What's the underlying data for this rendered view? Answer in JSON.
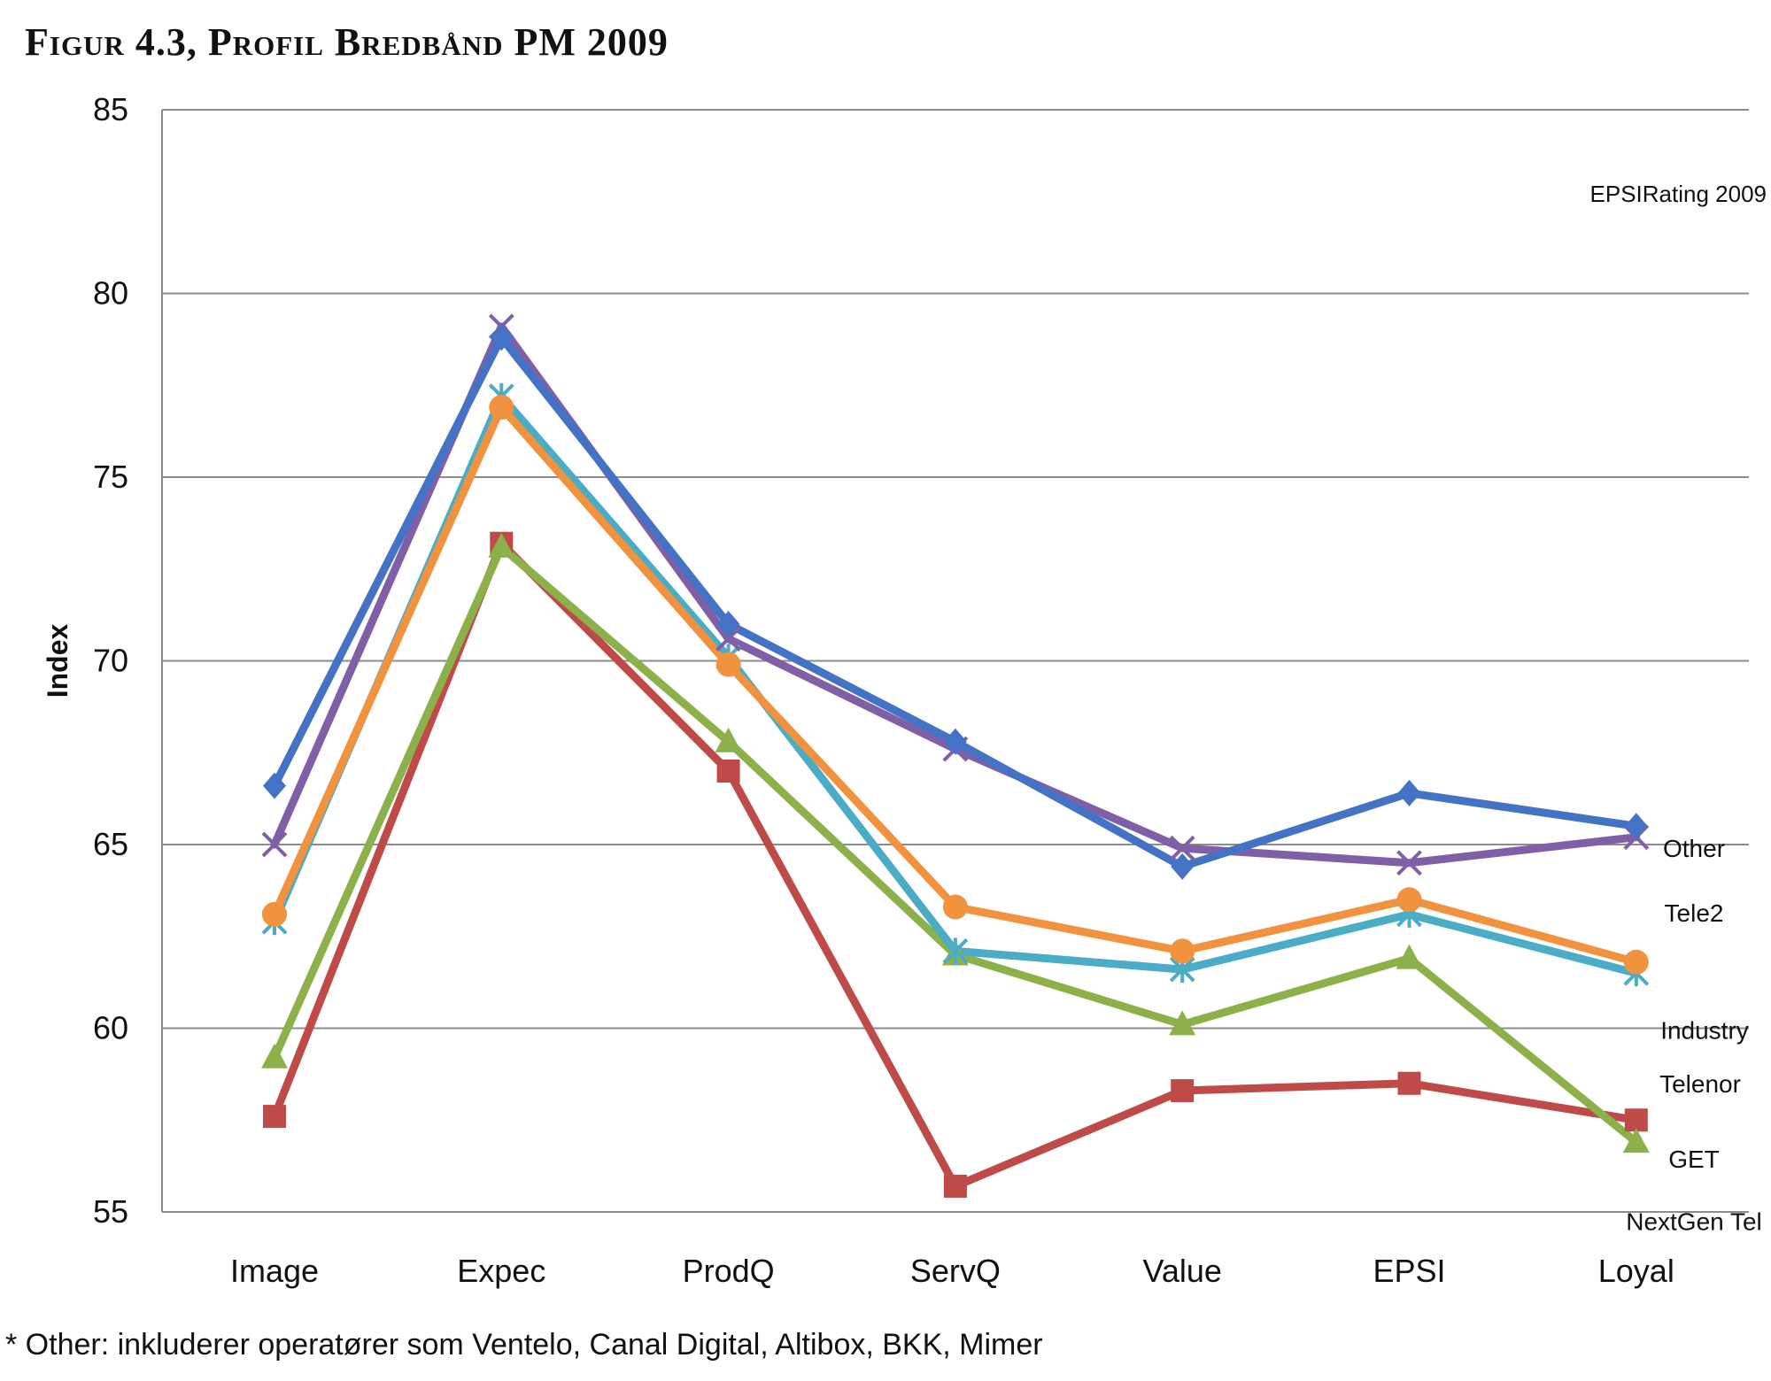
{
  "title": "Figur 4.3, Profil Bredbånd PM 2009",
  "footnote": "* Other: inkluderer operatører som Ventelo, Canal Digital, Altibox, BKK, Mimer",
  "chart_data": {
    "type": "line",
    "title": "Figur 4.3, Profil Bredbånd PM 2009",
    "xlabel": "",
    "ylabel": "Index",
    "categories": [
      "Image",
      "Expec",
      "ProdQ",
      "ServQ",
      "Value",
      "EPSI",
      "Loyal"
    ],
    "ylim": [
      55,
      85
    ],
    "yticks": [
      55,
      60,
      65,
      70,
      75,
      80,
      85
    ],
    "grid": true,
    "annotation": "EPSIRating 2009",
    "series": [
      {
        "name": "Other",
        "color": "#4472c4",
        "marker": "diamond",
        "values": [
          66.6,
          78.8,
          71.0,
          67.8,
          64.4,
          66.4,
          65.5
        ]
      },
      {
        "name": "Tele2",
        "color": "#7f5fa5",
        "marker": "x",
        "values": [
          65.0,
          79.1,
          70.6,
          67.6,
          64.9,
          64.5,
          65.2
        ]
      },
      {
        "name": "Industry",
        "color": "#f0923e",
        "marker": "circle",
        "values": [
          63.1,
          76.9,
          69.9,
          63.3,
          62.1,
          63.5,
          61.8
        ]
      },
      {
        "name": "Telenor",
        "color": "#4bacc6",
        "marker": "star",
        "values": [
          62.9,
          77.2,
          70.1,
          62.1,
          61.6,
          63.1,
          61.5
        ]
      },
      {
        "name": "NextGen Tel",
        "color": "#8cb04a",
        "marker": "triangle",
        "values": [
          59.2,
          73.1,
          67.8,
          62.0,
          60.1,
          61.9,
          56.9
        ]
      },
      {
        "name": "GET",
        "color": "#be4b48",
        "marker": "square",
        "values": [
          57.6,
          73.2,
          67.0,
          55.7,
          58.3,
          58.5,
          57.5
        ]
      }
    ]
  }
}
